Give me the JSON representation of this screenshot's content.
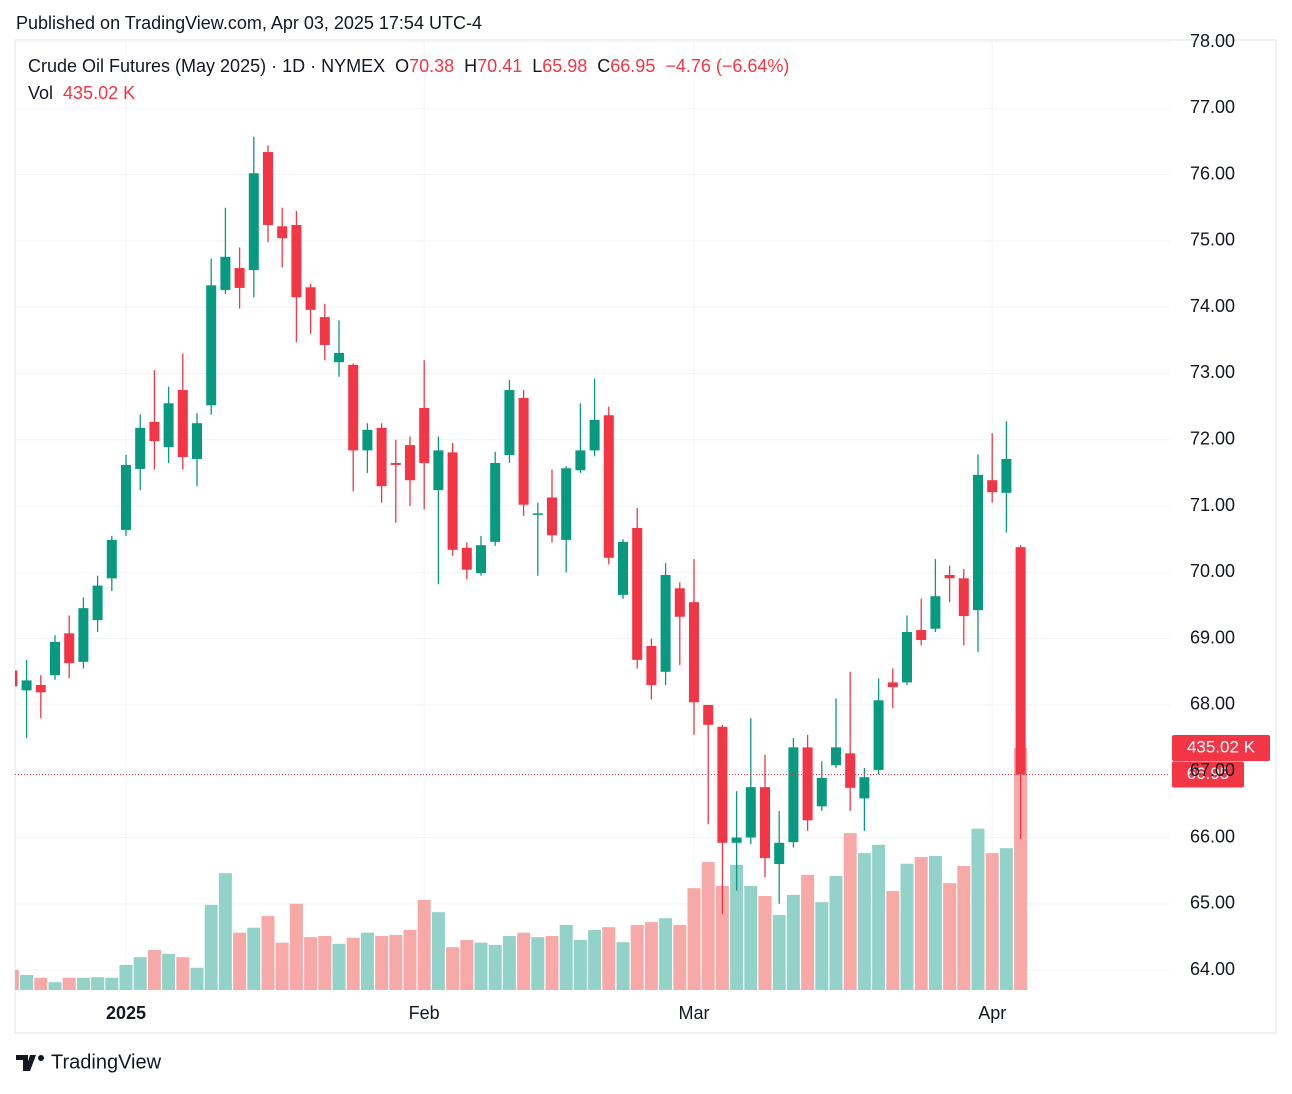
{
  "published": "Published on TradingView.com, Apr 03, 2025 17:54 UTC-4",
  "brand": "TradingView",
  "chart_data": {
    "type": "candlestick",
    "title": "Crude Oil Futures (May 2025) · 1D · NYMEX",
    "ohlc_keys": [
      "O",
      "H",
      "L",
      "C"
    ],
    "change_label": "−4.76 (−6.64%)",
    "volume_title": "Vol",
    "volume_last_label": "435.02 K",
    "categories": [
      null,
      null,
      null,
      null,
      null,
      null,
      null,
      null,
      "2025",
      null,
      null,
      null,
      null,
      null,
      null,
      null,
      null,
      null,
      null,
      null,
      null,
      null,
      null,
      null,
      null,
      null,
      null,
      null,
      null,
      "Feb",
      null,
      null,
      null,
      null,
      null,
      null,
      null,
      null,
      null,
      null,
      null,
      null,
      null,
      null,
      null,
      null,
      null,
      null,
      "Mar",
      null,
      null,
      null,
      null,
      null,
      null,
      null,
      null,
      null,
      null,
      null,
      null,
      null,
      null,
      null,
      null,
      null,
      null,
      null,
      null,
      "Apr",
      null,
      null
    ],
    "open": [
      68.52,
      68.22,
      68.3,
      68.45,
      69.08,
      68.65,
      69.28,
      69.91,
      70.64,
      71.56,
      72.27,
      71.89,
      72.75,
      71.71,
      72.52,
      74.26,
      74.59,
      74.56,
      76.34,
      75.22,
      75.24,
      74.3,
      73.85,
      73.17,
      73.13,
      71.84,
      72.18,
      71.65,
      71.92,
      72.48,
      71.24,
      71.81,
      70.37,
      69.99,
      70.46,
      71.77,
      72.63,
      70.87,
      71.13,
      70.49,
      71.54,
      71.84,
      72.37,
      69.66,
      70.67,
      68.89,
      68.5,
      69.76,
      69.55,
      68.0,
      67.67,
      65.92,
      66.0,
      66.76,
      65.6,
      65.93,
      67.36,
      66.47,
      67.09,
      67.27,
      66.59,
      67.02,
      68.34,
      68.34,
      69.13,
      69.15,
      69.96,
      69.91,
      69.43,
      71.39,
      71.2,
      70.38
    ],
    "high": [
      68.55,
      68.68,
      68.45,
      69.05,
      69.35,
      69.62,
      69.95,
      70.55,
      71.77,
      72.38,
      73.05,
      72.8,
      73.3,
      72.4,
      74.73,
      75.5,
      74.9,
      76.57,
      76.44,
      75.5,
      75.45,
      74.35,
      74.05,
      73.8,
      73.15,
      72.25,
      72.25,
      72.0,
      72.05,
      73.2,
      72.05,
      71.95,
      70.45,
      70.55,
      71.82,
      72.9,
      72.75,
      71.05,
      71.55,
      71.6,
      72.55,
      72.92,
      72.5,
      70.5,
      70.97,
      69.0,
      70.14,
      69.85,
      70.2,
      68.0,
      67.7,
      66.7,
      67.8,
      67.25,
      66.4,
      67.5,
      67.55,
      67.15,
      68.1,
      68.5,
      67.05,
      68.4,
      68.55,
      69.35,
      69.6,
      70.2,
      70.1,
      70.05,
      71.78,
      72.1,
      72.28,
      70.41
    ],
    "low": [
      68.25,
      67.5,
      67.8,
      68.38,
      68.4,
      68.55,
      69.1,
      69.72,
      70.55,
      71.24,
      71.55,
      71.65,
      71.55,
      71.3,
      72.38,
      74.2,
      73.98,
      74.15,
      74.98,
      74.6,
      73.47,
      73.6,
      73.2,
      72.95,
      71.22,
      71.5,
      71.05,
      70.75,
      71.0,
      70.95,
      69.82,
      70.25,
      69.9,
      69.95,
      70.4,
      71.65,
      70.85,
      69.95,
      70.45,
      70.0,
      71.5,
      71.75,
      70.12,
      69.6,
      68.55,
      68.08,
      68.3,
      68.6,
      67.55,
      66.2,
      64.85,
      65.2,
      65.9,
      65.4,
      65.0,
      65.85,
      66.1,
      66.4,
      67.05,
      66.4,
      66.1,
      66.95,
      67.95,
      68.3,
      68.9,
      69.1,
      69.55,
      68.9,
      68.8,
      71.05,
      70.6,
      65.98
    ],
    "close": [
      68.28,
      68.37,
      68.19,
      68.95,
      68.63,
      69.46,
      69.8,
      70.49,
      71.62,
      72.18,
      71.98,
      72.55,
      71.74,
      72.25,
      74.33,
      74.76,
      74.29,
      76.02,
      75.24,
      75.04,
      74.15,
      73.96,
      73.43,
      73.31,
      71.84,
      72.15,
      71.3,
      71.62,
      71.39,
      71.65,
      71.84,
      70.34,
      70.04,
      70.41,
      71.65,
      72.75,
      71.02,
      70.89,
      70.56,
      71.57,
      71.84,
      72.3,
      70.22,
      70.46,
      68.68,
      68.3,
      69.96,
      69.33,
      68.04,
      67.7,
      65.92,
      66.0,
      66.76,
      65.69,
      65.92,
      67.36,
      66.26,
      66.9,
      67.36,
      66.75,
      66.91,
      68.07,
      68.27,
      69.1,
      68.98,
      69.64,
      69.91,
      69.34,
      71.47,
      71.21,
      71.71,
      66.95
    ],
    "volume": [
      36,
      27,
      22,
      14,
      22,
      22,
      23,
      22,
      45,
      59,
      72,
      65,
      59,
      40,
      153,
      210,
      103,
      112,
      133,
      85,
      155,
      95,
      97,
      83,
      94,
      103,
      97,
      99,
      108,
      162,
      140,
      77,
      90,
      85,
      81,
      97,
      103,
      95,
      97,
      117,
      90,
      108,
      113,
      86,
      117,
      122,
      129,
      117,
      183,
      230,
      187,
      225,
      187,
      169,
      135,
      171,
      207,
      158,
      205,
      282,
      246,
      261,
      178,
      227,
      239,
      241,
      192,
      223,
      290,
      246,
      255,
      435.02
    ],
    "ylim": [
      63.7,
      78.0
    ],
    "yticks": [
      {
        "value": 64,
        "label": "64.00"
      },
      {
        "value": 65,
        "label": "65.00"
      },
      {
        "value": 66,
        "label": "66.00"
      },
      {
        "value": 67,
        "label": "67.00"
      },
      {
        "value": 68,
        "label": "68.00"
      },
      {
        "value": 69,
        "label": "69.00"
      },
      {
        "value": 70,
        "label": "70.00"
      },
      {
        "value": 71,
        "label": "71.00"
      },
      {
        "value": 72,
        "label": "72.00"
      },
      {
        "value": 73,
        "label": "73.00"
      },
      {
        "value": 74,
        "label": "74.00"
      },
      {
        "value": 75,
        "label": "75.00"
      },
      {
        "value": 76,
        "label": "76.00"
      },
      {
        "value": 77,
        "label": "77.00"
      },
      {
        "value": 78,
        "label": "78.00"
      }
    ],
    "volume_lim": [
      0,
      800
    ],
    "grid": true,
    "up_color": "#089981",
    "down_color": "#f23645",
    "volume_up_color": "#92d2c8",
    "volume_down_color": "#f7a9a7"
  }
}
